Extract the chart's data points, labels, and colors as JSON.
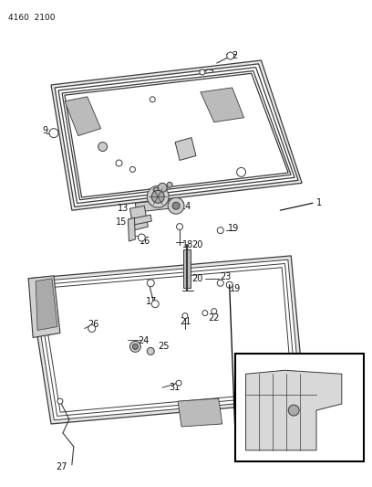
{
  "title_code": "4160 2100",
  "bg_color": "#ffffff",
  "lc": "#3a3a3a",
  "tc": "#111111",
  "fs": 7.0,
  "figsize": [
    4.08,
    5.33
  ],
  "dpi": 100
}
